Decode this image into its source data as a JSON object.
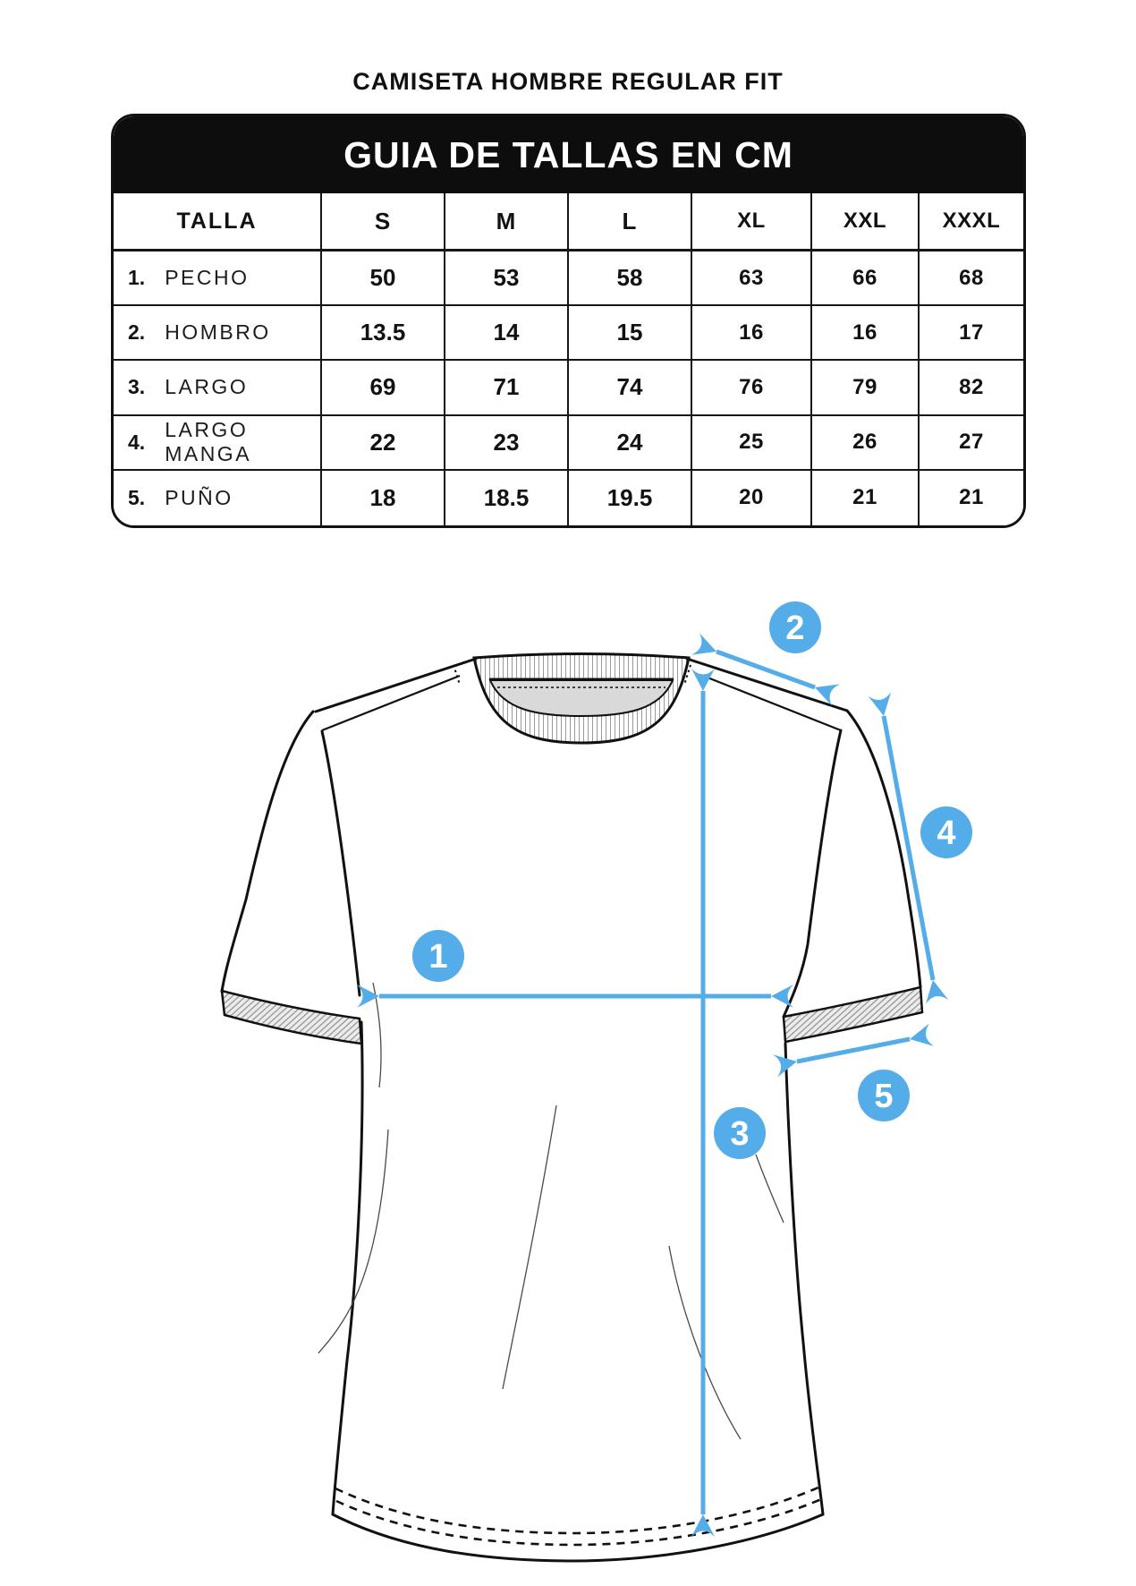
{
  "page_title": "CAMISETA HOMBRE REGULAR FIT",
  "size_table": {
    "title": "GUIA DE TALLAS EN CM",
    "columns": [
      "TALLA",
      "S",
      "M",
      "L",
      "XL",
      "XXL",
      "XXXL"
    ],
    "rows": [
      {
        "num": "1.",
        "label": "PECHO",
        "values": [
          "50",
          "53",
          "58",
          "63",
          "66",
          "68"
        ]
      },
      {
        "num": "2.",
        "label": "HOMBRO",
        "values": [
          "13.5",
          "14",
          "15",
          "16",
          "16",
          "17"
        ]
      },
      {
        "num": "3.",
        "label": "LARGO",
        "values": [
          "69",
          "71",
          "74",
          "76",
          "79",
          "82"
        ]
      },
      {
        "num": "4.",
        "label": "LARGO MANGA",
        "values": [
          "22",
          "23",
          "24",
          "25",
          "26",
          "27"
        ]
      },
      {
        "num": "5.",
        "label": "PUÑO",
        "values": [
          "18",
          "18.5",
          "19.5",
          "20",
          "21",
          "21"
        ]
      }
    ]
  },
  "diagram": {
    "markers": [
      {
        "num": "1",
        "measure": "PECHO"
      },
      {
        "num": "2",
        "measure": "HOMBRO"
      },
      {
        "num": "3",
        "measure": "LARGO"
      },
      {
        "num": "4",
        "measure": "LARGO MANGA"
      },
      {
        "num": "5",
        "measure": "PUÑO"
      }
    ],
    "colors": {
      "accent_blue": "#54ADE9",
      "collar_gray": "#D9D9D9",
      "line_black": "#111111"
    }
  }
}
